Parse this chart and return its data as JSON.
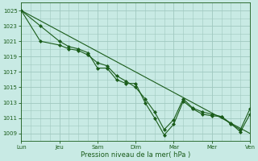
{
  "title": "Pression niveau de la mer( hPa )",
  "background_color": "#c8eae4",
  "grid_color": "#a0c8c0",
  "line_color": "#1a5c1a",
  "marker_color": "#1a5c1a",
  "ylim": [
    1008.0,
    1026.0
  ],
  "yticks": [
    1009,
    1011,
    1013,
    1015,
    1017,
    1019,
    1021,
    1023,
    1025
  ],
  "xlabel_color": "#1a5c1a",
  "xtick_labels": [
    "Lun",
    "Jeu",
    "Sam",
    "Dim",
    "Mar",
    "Mer",
    "Ven"
  ],
  "xtick_positions": [
    0,
    2,
    4,
    6,
    8,
    10,
    12
  ],
  "xlim": [
    0,
    12
  ],
  "line1_x": [
    0,
    1,
    2,
    2.5,
    3,
    3.5,
    4,
    4.5,
    5,
    5.5,
    6,
    6.5,
    7,
    7.5,
    8,
    8.5,
    9,
    9.5,
    10,
    10.5,
    11,
    11.5,
    12
  ],
  "line1_y": [
    1025,
    1023,
    1021,
    1020.3,
    1020,
    1019.5,
    1017.5,
    1017.5,
    1016,
    1015.5,
    1015.5,
    1013,
    1011,
    1008.8,
    1010.2,
    1013.2,
    1012.2,
    1011.5,
    1011.3,
    1011.2,
    1010.3,
    1009.2,
    1011.5
  ],
  "line2_x": [
    0,
    1,
    2,
    2.5,
    3,
    3.5,
    4,
    4.5,
    5,
    5.5,
    6,
    6.5,
    7,
    7.5,
    8,
    8.5,
    9,
    9.5,
    10,
    10.5,
    11,
    11.5,
    12
  ],
  "line2_y": [
    1025,
    1021,
    1020.5,
    1020,
    1019.8,
    1019.2,
    1018.2,
    1017.8,
    1016.5,
    1015.8,
    1015,
    1013.5,
    1011.8,
    1009.5,
    1010.8,
    1013.5,
    1012.3,
    1011.8,
    1011.5,
    1011.2,
    1010.2,
    1009.5,
    1012.2
  ],
  "line3_x": [
    0,
    12
  ],
  "line3_y": [
    1025,
    1009
  ]
}
